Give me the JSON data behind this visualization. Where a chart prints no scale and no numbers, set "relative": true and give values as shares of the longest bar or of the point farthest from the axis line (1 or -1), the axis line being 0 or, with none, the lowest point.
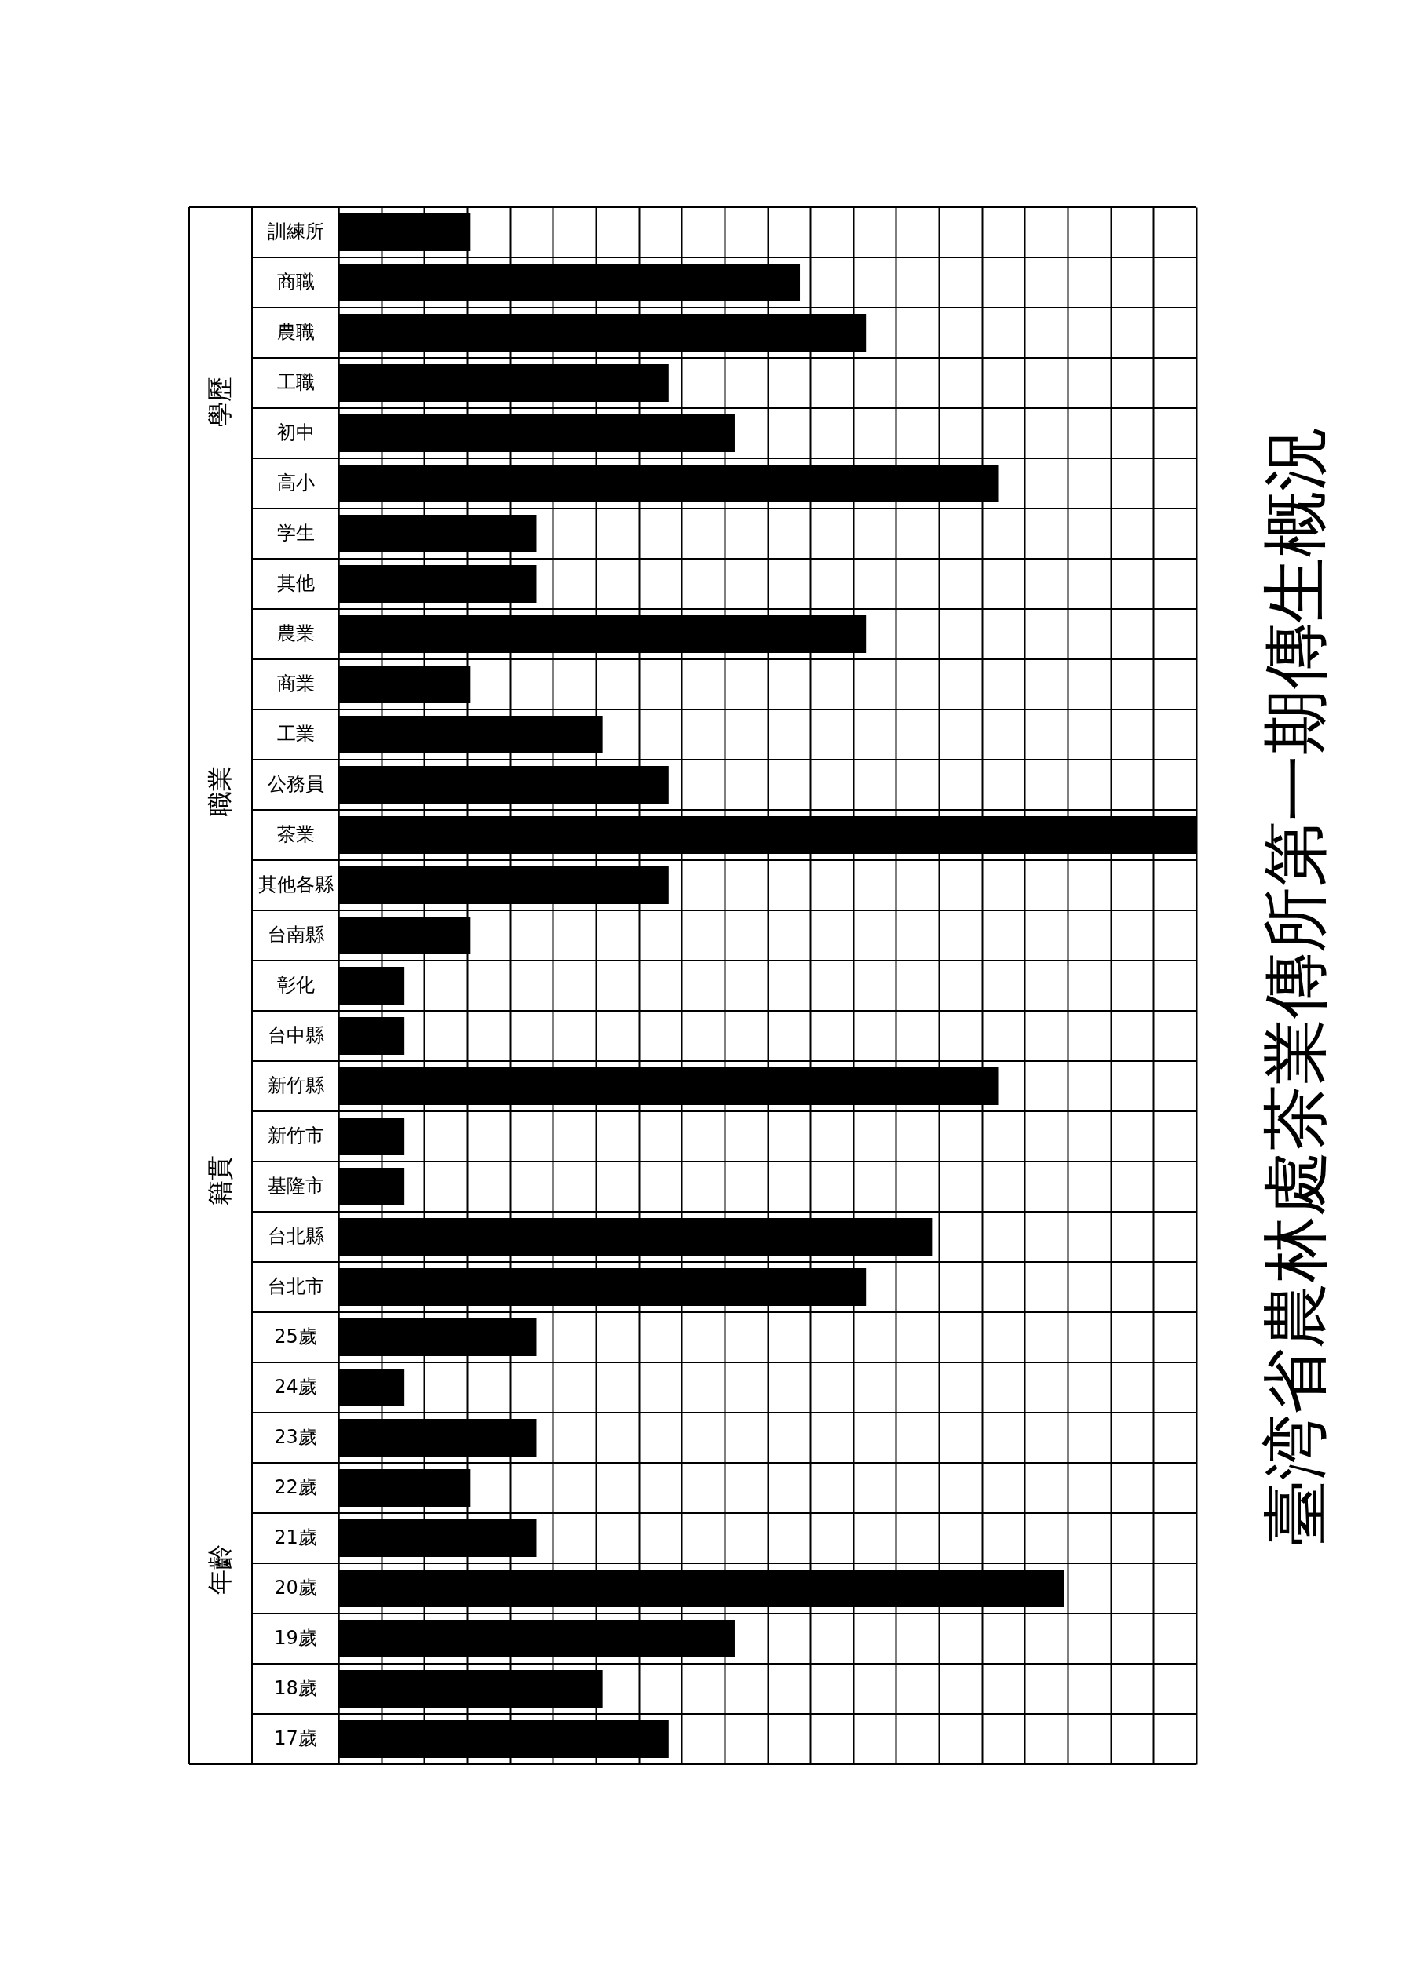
{
  "chart_data": {
    "type": "bar",
    "orientation": "horizontal",
    "relative": true,
    "title": "臺湾省農林處茶業傳所第一期傳生概況",
    "categories": [
      "訓練所",
      "商職",
      "農職",
      "工職",
      "初中",
      "高小",
      "学生",
      "其他",
      "農業",
      "商業",
      "工業",
      "公務員",
      "茶業",
      "其他各縣",
      "台南縣",
      "彰化",
      "台中縣",
      "新竹縣",
      "新竹市",
      "基隆市",
      "台北縣",
      "台北市",
      "25歲",
      "24歲",
      "23歲",
      "22歲",
      "21歲",
      "20歲",
      "19歲",
      "18歲",
      "17歲"
    ],
    "values": [
      0.154,
      0.538,
      0.615,
      0.385,
      0.462,
      0.769,
      0.231,
      0.231,
      0.615,
      0.154,
      0.308,
      0.385,
      1,
      0.385,
      0.154,
      0.077,
      0.077,
      0.769,
      0.077,
      0.077,
      0.692,
      0.615,
      0.231,
      0.077,
      0.231,
      0.154,
      0.231,
      0.846,
      0.462,
      0.308,
      0.385
    ],
    "color": "#000000",
    "grid": true,
    "tick_labels": "y",
    "annotations": [
      "學歷",
      "職業",
      "籍貫",
      "年齡"
    ]
  }
}
